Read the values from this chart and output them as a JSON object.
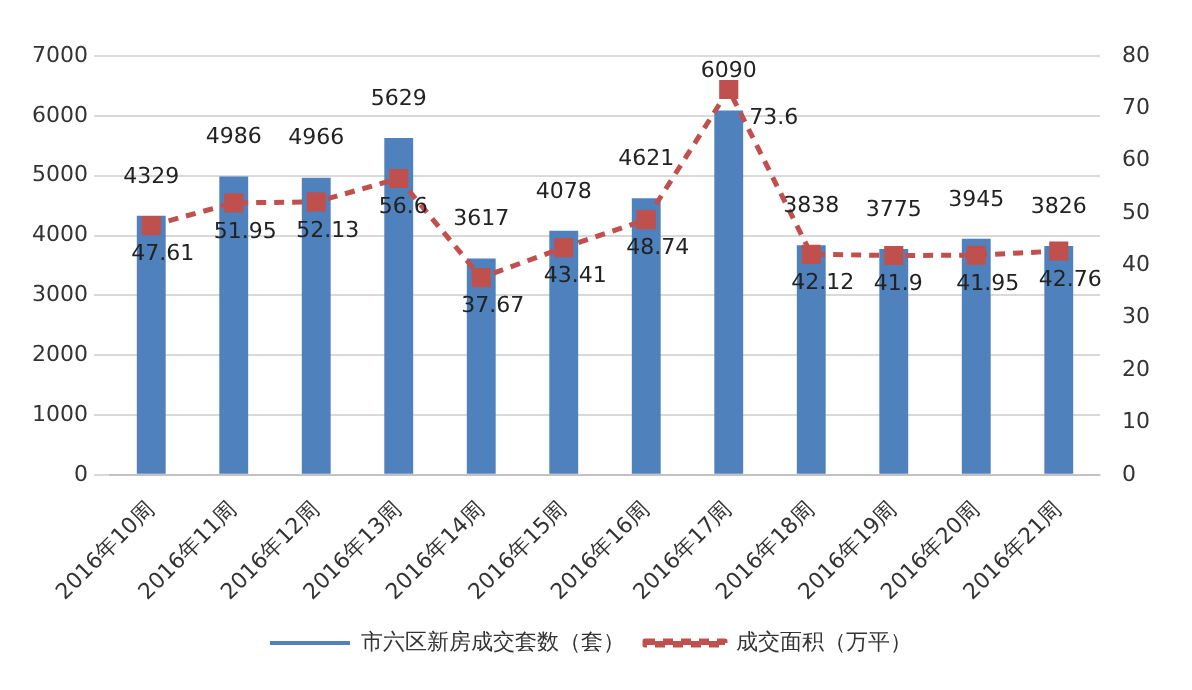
{
  "chart_data": {
    "type": "bar",
    "categories": [
      "2016年10周",
      "2016年11周",
      "2016年12周",
      "2016年13周",
      "2016年14周",
      "2016年15周",
      "2016年16周",
      "2016年17周",
      "2016年18周",
      "2016年19周",
      "2016年20周",
      "2016年21周"
    ],
    "series": [
      {
        "name": "市六区新房成交套数（套）",
        "color": "#4f81bd",
        "values": [
          4329,
          4986,
          4966,
          5629,
          3617,
          4078,
          4621,
          6090,
          3838,
          3775,
          3945,
          3826
        ]
      },
      {
        "name": "成交面积（万平）",
        "type": "line",
        "axis": "y2",
        "color": "#c0504d",
        "marker": "square",
        "line_style": "dashed",
        "values": [
          47.61,
          51.95,
          52.13,
          56.6,
          37.67,
          43.41,
          48.74,
          73.6,
          42.12,
          41.9,
          41.95,
          42.76
        ]
      }
    ],
    "ylim": [
      0,
      7000
    ],
    "yticks": [
      0,
      1000,
      2000,
      3000,
      4000,
      5000,
      6000,
      7000
    ],
    "y2lim": [
      0,
      80
    ],
    "y2ticks": [
      0,
      10,
      20,
      30,
      40,
      50,
      60,
      70,
      80
    ],
    "grid": "y",
    "legend": "bottom",
    "data_labels": true
  }
}
